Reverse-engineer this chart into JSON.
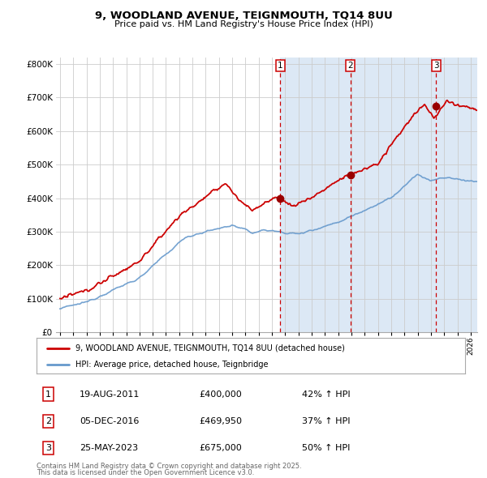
{
  "title_line1": "9, WOODLAND AVENUE, TEIGNMOUTH, TQ14 8UU",
  "title_line2": "Price paid vs. HM Land Registry's House Price Index (HPI)",
  "ylim": [
    0,
    820000
  ],
  "xlim_start": 1994.7,
  "xlim_end": 2026.5,
  "yticks": [
    0,
    100000,
    200000,
    300000,
    400000,
    500000,
    600000,
    700000,
    800000
  ],
  "ytick_labels": [
    "£0",
    "£100K",
    "£200K",
    "£300K",
    "£400K",
    "£500K",
    "£600K",
    "£700K",
    "£800K"
  ],
  "xticks": [
    1995,
    1996,
    1997,
    1998,
    1999,
    2000,
    2001,
    2002,
    2003,
    2004,
    2005,
    2006,
    2007,
    2008,
    2009,
    2010,
    2011,
    2012,
    2013,
    2014,
    2015,
    2016,
    2017,
    2018,
    2019,
    2020,
    2021,
    2022,
    2023,
    2024,
    2025,
    2026
  ],
  "sale_color": "#cc0000",
  "hpi_color": "#6699cc",
  "shade_color": "#dce8f5",
  "marker_color": "#990000",
  "vline_color": "#cc0000",
  "background_color": "#ffffff",
  "chart_bg": "#ffffff",
  "grid_color": "#cccccc",
  "transactions": [
    {
      "num": 1,
      "date_x": 2011.63,
      "price": 400000,
      "label": "1",
      "pct": "42%",
      "hpi_label": "19-AUG-2011",
      "price_str": "£400,000"
    },
    {
      "num": 2,
      "date_x": 2016.92,
      "price": 469950,
      "label": "2",
      "pct": "37%",
      "hpi_label": "05-DEC-2016",
      "price_str": "£469,950"
    },
    {
      "num": 3,
      "date_x": 2023.4,
      "price": 675000,
      "label": "3",
      "pct": "50%",
      "hpi_label": "25-MAY-2023",
      "price_str": "£675,000"
    }
  ],
  "footer_line1": "Contains HM Land Registry data © Crown copyright and database right 2025.",
  "footer_line2": "This data is licensed under the Open Government Licence v3.0.",
  "legend_entry1": "9, WOODLAND AVENUE, TEIGNMOUTH, TQ14 8UU (detached house)",
  "legend_entry2": "HPI: Average price, detached house, Teignbridge"
}
